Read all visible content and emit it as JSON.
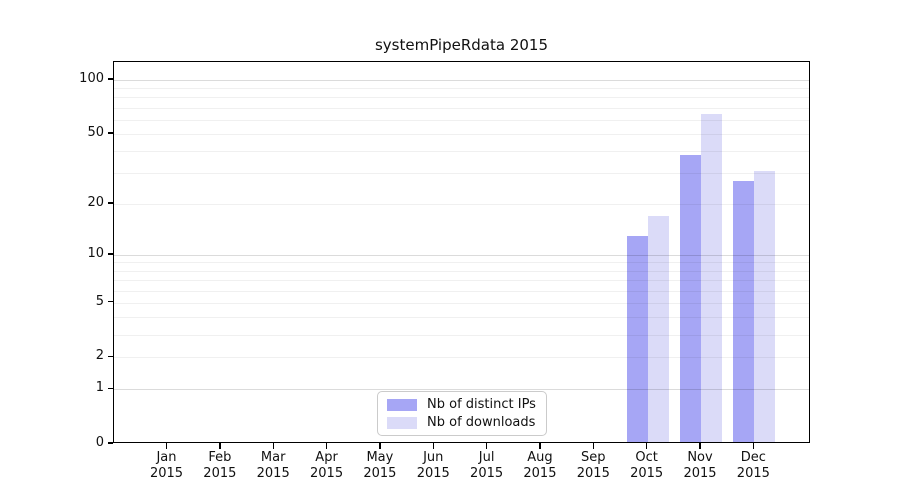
{
  "chart_data": {
    "type": "bar",
    "title": "systemPipeRdata 2015",
    "months": [
      "Jan",
      "Feb",
      "Mar",
      "Apr",
      "May",
      "Jun",
      "Jul",
      "Aug",
      "Sep",
      "Oct",
      "Nov",
      "Dec"
    ],
    "year": "2015",
    "series": [
      {
        "name": "Nb of distinct IPs",
        "color": "#a6a6f5",
        "values": [
          0,
          0,
          0,
          0,
          0,
          0,
          0,
          0,
          0,
          13,
          38,
          27
        ]
      },
      {
        "name": "Nb of downloads",
        "color": "#dbdbf8",
        "values": [
          0,
          0,
          0,
          0,
          0,
          0,
          0,
          0,
          0,
          17,
          65,
          31
        ]
      }
    ],
    "yticks": [
      0,
      1,
      2,
      5,
      10,
      20,
      50,
      100
    ],
    "grid_minor_values": [
      1,
      2,
      3,
      4,
      5,
      6,
      7,
      8,
      9,
      10,
      20,
      30,
      40,
      50,
      60,
      70,
      80,
      90,
      100
    ],
    "grid_major_values": [
      1,
      10,
      100
    ],
    "scale": "log1p",
    "ylim": [
      0,
      126
    ],
    "grid": true,
    "legend_position": "lower center",
    "colors": {
      "grid_minor": "rgba(0,0,0,0.06)",
      "grid_major": "rgba(0,0,0,0.14)",
      "axis": "#000000",
      "text": "#111111"
    }
  }
}
